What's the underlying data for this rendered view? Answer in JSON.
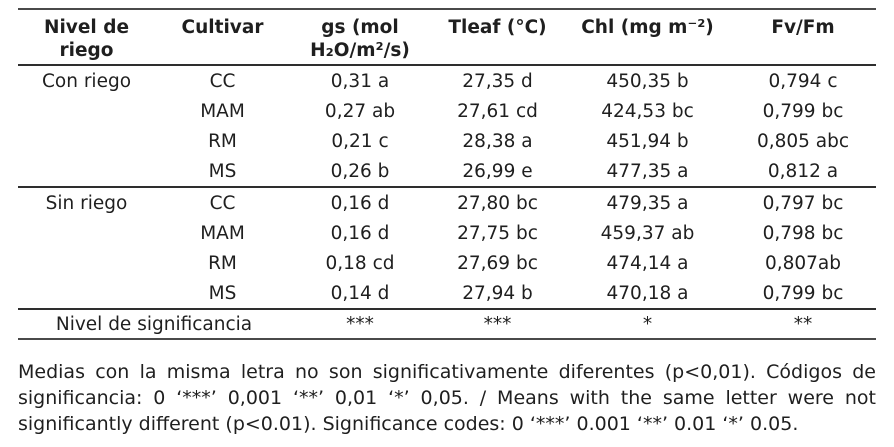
{
  "table": {
    "headers": {
      "level": "Nivel de riego",
      "cultivar": "Cultivar",
      "gs": "gs (mol H₂O/m²/s)",
      "tleaf": "Tleaf (°C)",
      "chl": "Chl (mg m⁻²)",
      "fvfm": "Fv/Fm"
    },
    "rows": [
      {
        "level": "Con riego",
        "cultivar": "CC",
        "gs": "0,31 a",
        "tleaf": "27,35 d",
        "chl": "450,35 b",
        "fvfm": "0,794 c"
      },
      {
        "level": "",
        "cultivar": "MAM",
        "gs": "0,27 ab",
        "tleaf": "27,61 cd",
        "chl": "424,53 bc",
        "fvfm": "0,799 bc"
      },
      {
        "level": "",
        "cultivar": "RM",
        "gs": "0,21 c",
        "tleaf": "28,38 a",
        "chl": "451,94 b",
        "fvfm": "0,805 abc"
      },
      {
        "level": "",
        "cultivar": "MS",
        "gs": "0,26 b",
        "tleaf": "26,99 e",
        "chl": "477,35 a",
        "fvfm": "0,812 a"
      },
      {
        "level": "Sin riego",
        "cultivar": "CC",
        "gs": "0,16 d",
        "tleaf": "27,80 bc",
        "chl": "479,35 a",
        "fvfm": "0,797 bc"
      },
      {
        "level": "",
        "cultivar": "MAM",
        "gs": "0,16 d",
        "tleaf": "27,75 bc",
        "chl": "459,37 ab",
        "fvfm": "0,798 bc"
      },
      {
        "level": "",
        "cultivar": "RM",
        "gs": "0,18 cd",
        "tleaf": "27,69 bc",
        "chl": "474,14 a",
        "fvfm": "0,807ab"
      },
      {
        "level": "",
        "cultivar": "MS",
        "gs": "0,14 d",
        "tleaf": "27,94 b",
        "chl": "470,18 a",
        "fvfm": "0,799 bc"
      }
    ],
    "significance": {
      "label": "Nivel de significancia",
      "gs": "***",
      "tleaf": "***",
      "chl": "*",
      "fvfm": "**"
    }
  },
  "footnote": {
    "lines": [
      "Medias con la misma letra no son significativamente diferentes (p<0,01). Códigos de",
      "significancia: 0 ‘***’ 0,001 ‘**’ 0,01 ‘*’ 0,05. / Means with the same letter were not",
      "significantly different (p<0.01). Significance codes: 0 ‘***’ 0.001 ‘**’ 0.01 ‘*’ 0.05."
    ]
  },
  "colors": {
    "text": "#1f1f1f",
    "rule_strong": "#2e2e2e",
    "rule_light": "#4a4a4a",
    "background": "#ffffff"
  }
}
